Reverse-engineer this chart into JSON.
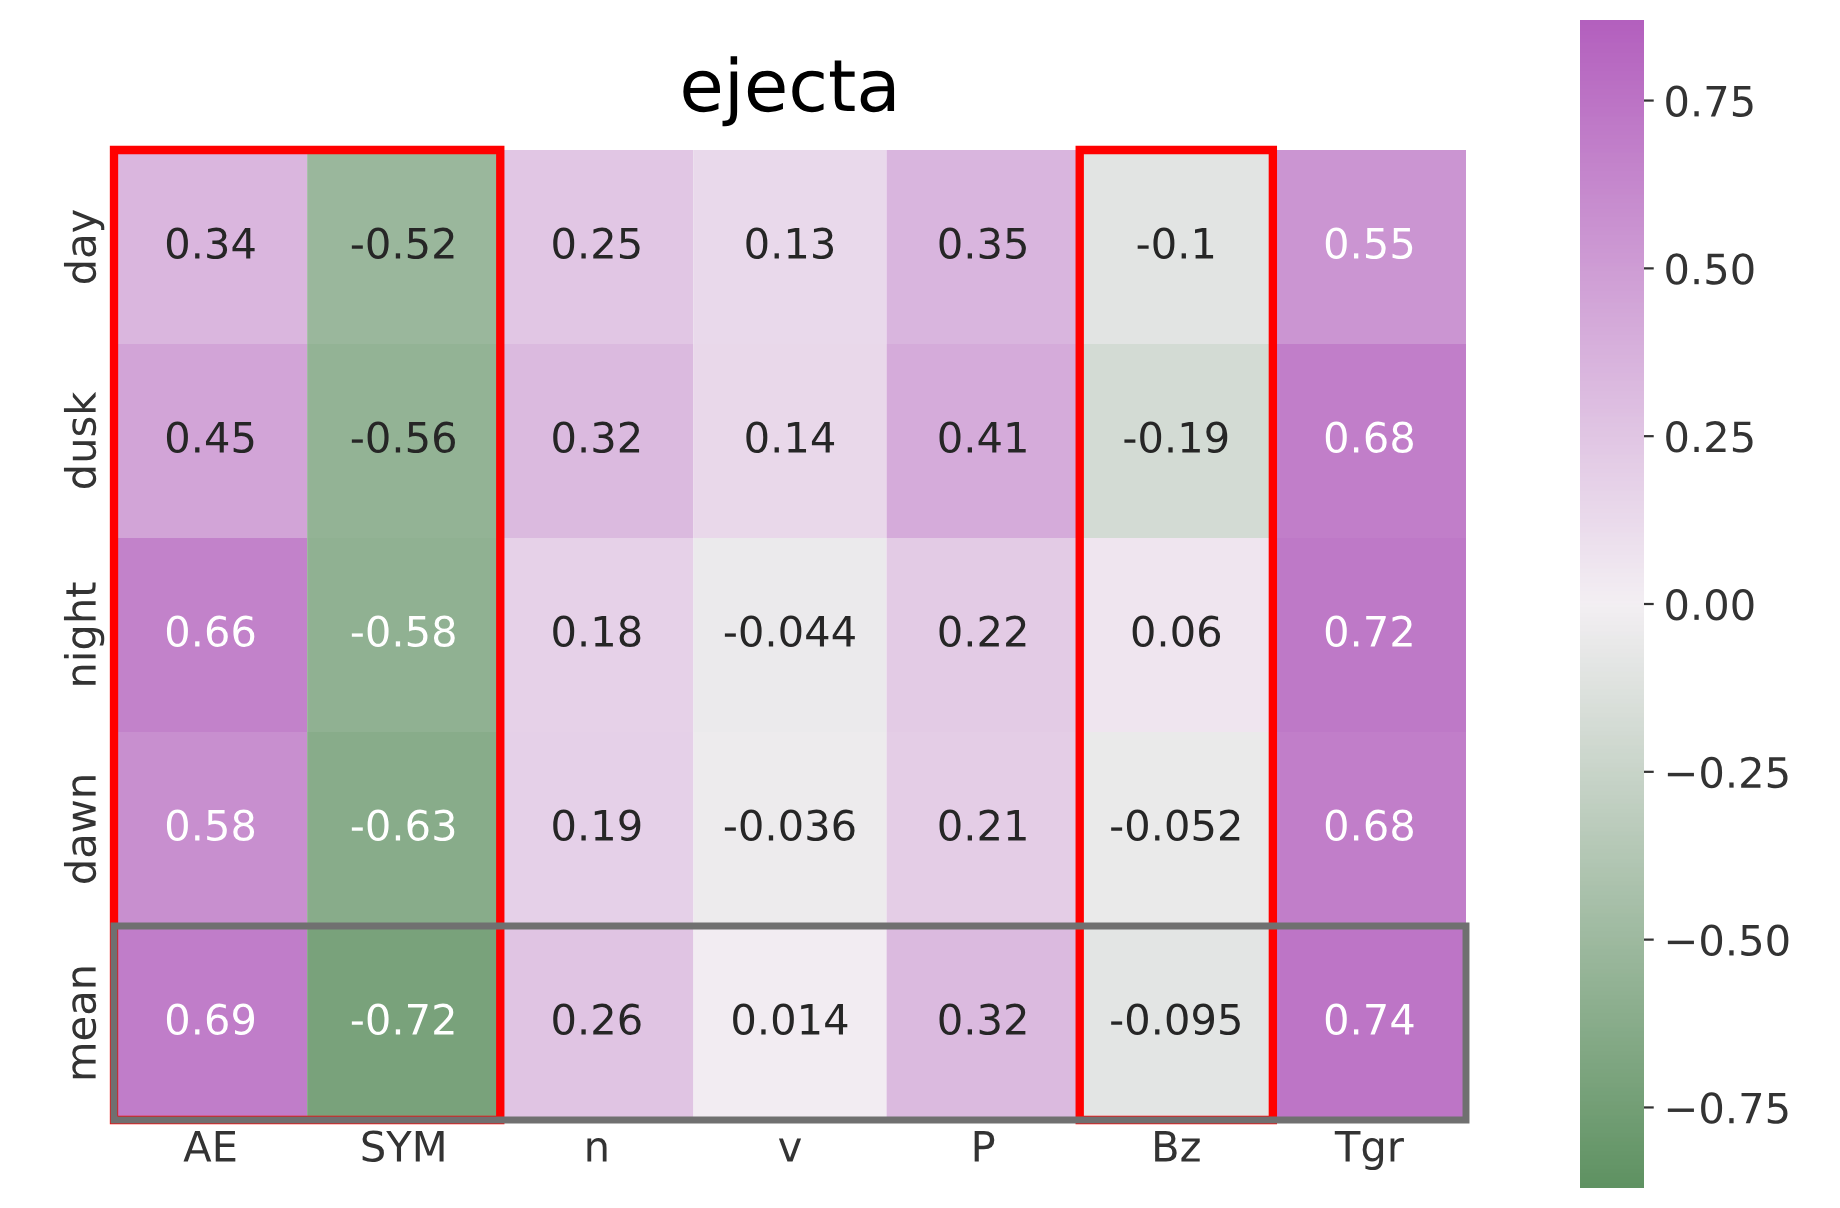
{
  "chart_data": {
    "type": "heatmap",
    "title": "ejecta",
    "categories": [
      "AE",
      "SYM",
      "n",
      "v",
      "P",
      "Bz",
      "Tgr"
    ],
    "y_categories": [
      "day",
      "dusk",
      "night",
      "dawn",
      "mean"
    ],
    "cells": [
      [
        0.34,
        -0.52,
        0.25,
        0.13,
        0.35,
        -0.1,
        0.55
      ],
      [
        0.45,
        -0.56,
        0.32,
        0.14,
        0.41,
        -0.19,
        0.68
      ],
      [
        0.66,
        -0.58,
        0.18,
        -0.044,
        0.22,
        0.06,
        0.72
      ],
      [
        0.58,
        -0.63,
        0.19,
        -0.036,
        0.21,
        -0.052,
        0.68
      ],
      [
        0.69,
        -0.72,
        0.26,
        0.014,
        0.32,
        -0.095,
        0.74
      ]
    ],
    "data_labels": true,
    "colors": [
      "#5f9262",
      "#f3eff3",
      "#b360be"
    ],
    "clim": [
      -0.87,
      0.87
    ],
    "cticks": [
      {
        "value": 0.75,
        "label": "0.75"
      },
      {
        "value": 0.5,
        "label": "0.50"
      },
      {
        "value": 0.25,
        "label": "0.25"
      },
      {
        "value": 0.0,
        "label": "0.00"
      },
      {
        "value": -0.25,
        "label": "−0.25"
      },
      {
        "value": -0.5,
        "label": "−0.50"
      },
      {
        "value": -0.75,
        "label": "−0.75"
      }
    ]
  }
}
